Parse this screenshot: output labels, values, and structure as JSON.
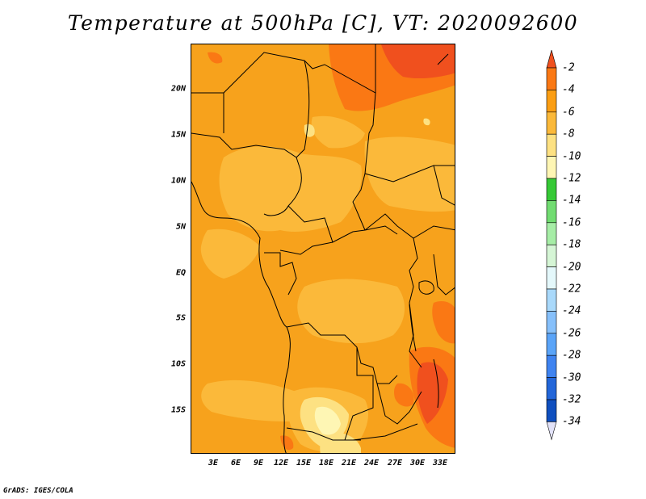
{
  "title": "Temperature at 500hPa [C], VT: 2020092600",
  "credit": "GrADS: IGES/COLA",
  "map": {
    "lat_ticks": [
      "20N",
      "15N",
      "10N",
      "5N",
      "EQ",
      "5S",
      "10S",
      "15S"
    ],
    "lon_ticks": [
      "3E",
      "6E",
      "9E",
      "12E",
      "15E",
      "18E",
      "21E",
      "24E",
      "27E",
      "30E",
      "33E"
    ]
  },
  "colorbar": {
    "labels": [
      "-2",
      "-4",
      "-6",
      "-8",
      "-10",
      "-12",
      "-14",
      "-16",
      "-18",
      "-20",
      "-22",
      "-24",
      "-26",
      "-28",
      "-30",
      "-32",
      "-34"
    ],
    "colors": [
      "#f0501e",
      "#fa7814",
      "#fb9e13",
      "#fbb93a",
      "#fde182",
      "#fef6b4",
      "#36c936",
      "#71dc71",
      "#a6eda6",
      "#d5f5d5",
      "#e4f8fb",
      "#a9d9fb",
      "#86c0fb",
      "#5aa4f8",
      "#3f83f0",
      "#2366d9",
      "#0f4fbf",
      "#08178c"
    ],
    "top_arrow_color": "#f0501e",
    "bottom_arrow_color": "#e2e2f8"
  },
  "colors": {
    "base_field": "#f7a21c",
    "warm_field": "#fa7814",
    "cool_field": "#fbb93a",
    "pale_field": "#fde182",
    "palest_field": "#fef6b4",
    "borders": "#000000"
  }
}
